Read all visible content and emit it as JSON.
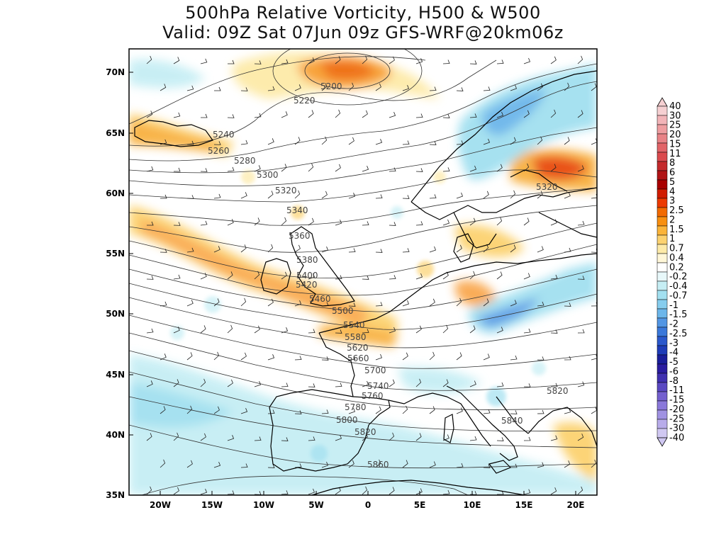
{
  "title": {
    "line1": "500hPa Relative Vorticity, H500 & W500",
    "line2": "Valid: 09Z Sat 07Jun 09z GFS-WRF@20km06z"
  },
  "map": {
    "region": "Europe / North Atlantic",
    "lon_range": [
      -23,
      22
    ],
    "lat_range": [
      35,
      72
    ],
    "lat_ticks": [
      "35N",
      "40N",
      "45N",
      "50N",
      "55N",
      "60N",
      "65N",
      "70N"
    ],
    "lon_ticks": [
      "20W",
      "15W",
      "10W",
      "5W",
      "0",
      "5E",
      "10E",
      "15E",
      "20E"
    ],
    "contour_labels": [
      "5200",
      "5220",
      "5240",
      "5260",
      "5280",
      "5300",
      "5320",
      "5340",
      "5360",
      "5380",
      "5400",
      "5420",
      "5460",
      "5500",
      "5540",
      "5580",
      "5620",
      "5660",
      "5700",
      "5740",
      "5760",
      "5780",
      "5800",
      "5820",
      "5860",
      "5840",
      "5820",
      "5320"
    ]
  },
  "colorbar": {
    "labels": [
      "40",
      "30",
      "25",
      "20",
      "15",
      "11",
      "8",
      "6",
      "5",
      "4",
      "3",
      "2.5",
      "2",
      "1.5",
      "1",
      "0.7",
      "0.4",
      "0.2",
      "-0.2",
      "-0.4",
      "-0.7",
      "-1",
      "-1.5",
      "-2",
      "-2.5",
      "-3",
      "-4",
      "-5",
      "-6",
      "-8",
      "-11",
      "-15",
      "-20",
      "-25",
      "-30",
      "-40"
    ],
    "colors": [
      "#f6d0d2",
      "#f2b4b8",
      "#ee9da0",
      "#e88286",
      "#e26468",
      "#db4a4e",
      "#c42a2c",
      "#b01416",
      "#a80000",
      "#d01c00",
      "#ec3a00",
      "#f26a00",
      "#f88f10",
      "#fbb43a",
      "#fcd270",
      "#fdeaa8",
      "#fff7d8",
      "#ffffff",
      "#e8f8fa",
      "#c6eef4",
      "#a2e0f0",
      "#86cdee",
      "#6cb6ea",
      "#5296e4",
      "#3a78da",
      "#2a58cc",
      "#1e3cb8",
      "#1a1e9a",
      "#2a1ca0",
      "#4030b0",
      "#5a48c2",
      "#7460cf",
      "#8a78da",
      "#a092e2",
      "#b8acea",
      "#d0c8f2"
    ]
  }
}
